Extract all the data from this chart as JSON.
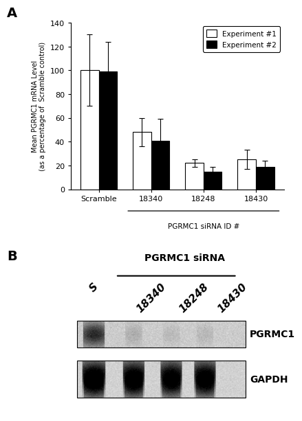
{
  "panel_a": {
    "categories": [
      "Scramble",
      "18340",
      "18248",
      "18430"
    ],
    "exp1_values": [
      100,
      48,
      22,
      25
    ],
    "exp1_errors": [
      30,
      12,
      3,
      8
    ],
    "exp2_values": [
      99,
      41,
      15,
      19
    ],
    "exp2_errors": [
      25,
      18,
      4,
      5
    ],
    "ylabel_line1": "Mean PGRMC1 mRNA Level",
    "ylabel_line2": "(as a percentage of  Scramble control)",
    "xlabel": "PGRMC1 siRNA ID #",
    "ylim": [
      0,
      140
    ],
    "yticks": [
      0,
      20,
      40,
      60,
      80,
      100,
      120,
      140
    ],
    "bar_width": 0.35,
    "color_exp1": "#ffffff",
    "color_exp2": "#000000",
    "edge_color": "#000000",
    "legend_labels": [
      "Experiment #1",
      "Experiment #2"
    ],
    "panel_label": "A"
  },
  "panel_b": {
    "panel_label": "B",
    "title": "PGRMC1 siRNA",
    "lane_labels": [
      "S",
      "18340",
      "18248",
      "18430"
    ],
    "band_label_pgrmc1": "PGRMC1",
    "band_label_gapdh": "GAPDH"
  }
}
